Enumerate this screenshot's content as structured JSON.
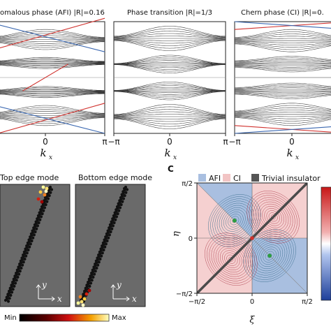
{
  "panel_c_letter": "C",
  "panel_a": {
    "xlim": [
      -3.1416,
      3.1416
    ],
    "xlabel": "k",
    "xlabel_sub": "x",
    "tick_labels": [
      "π",
      "0",
      "π"
    ],
    "colors": {
      "red": "#d0312d",
      "blue": "#3a67b0",
      "bands": "#3a3a3a"
    },
    "charts": [
      {
        "type": "line",
        "title": "omalous phase (AFI)  |R|=0.16",
        "bulk_bands": [
          {
            "center": 0.16,
            "halfwidth_min": 0.02,
            "halfwidth_max": 0.09
          },
          {
            "center": 0.37,
            "halfwidth_min": 0.015,
            "halfwidth_max": 0.05
          },
          {
            "center": 0.63,
            "halfwidth_min": 0.015,
            "halfwidth_max": 0.05
          },
          {
            "center": 0.84,
            "halfwidth_min": 0.02,
            "halfwidth_max": 0.09
          }
        ],
        "edge_states": "winding",
        "x_tick_labels": [
          "0",
          "π"
        ]
      },
      {
        "type": "line",
        "title": "Phase transition  |R|=1/3",
        "bulk_bands": [
          {
            "center": 0.15,
            "halfwidth_min": 0.02,
            "halfwidth_max": 0.11
          },
          {
            "center": 0.38,
            "halfwidth_min": 0.005,
            "halfwidth_max": 0.08
          },
          {
            "center": 0.62,
            "halfwidth_min": 0.005,
            "halfwidth_max": 0.08
          },
          {
            "center": 0.85,
            "halfwidth_min": 0.02,
            "halfwidth_max": 0.11
          }
        ],
        "edge_states": "none",
        "x_tick_labels": [
          "−π",
          "0",
          "π"
        ]
      },
      {
        "type": "line",
        "title": "Chern phase (CI)  |R|=0.",
        "bulk_bands": [
          {
            "center": 0.17,
            "halfwidth_min": 0.03,
            "halfwidth_max": 0.1
          },
          {
            "center": 0.38,
            "halfwidth_min": 0.03,
            "halfwidth_max": 0.07
          },
          {
            "center": 0.62,
            "halfwidth_min": 0.03,
            "halfwidth_max": 0.07
          },
          {
            "center": 0.83,
            "halfwidth_min": 0.03,
            "halfwidth_max": 0.1
          }
        ],
        "edge_states": "chern",
        "x_tick_labels": [
          "−π",
          "0"
        ]
      }
    ]
  },
  "panel_b": {
    "titles": [
      "Top edge mode",
      "Bottom edge mode"
    ],
    "axis_y": "y",
    "axis_x": "x",
    "colorbar_min": "Min",
    "colorbar_max": "Max",
    "lattice_color": "#111111",
    "background": "#6a6a6a"
  },
  "panel_c": {
    "type": "heatmap",
    "legend": [
      {
        "label": "AFI",
        "color": "#a9bfe0"
      },
      {
        "label": "CI",
        "color": "#f2c4c4"
      },
      {
        "label": "Trivial insulator",
        "color": "#555555"
      }
    ],
    "xlabel": "ξ",
    "ylabel": "η",
    "xlim": [
      -1.5708,
      1.5708
    ],
    "ylim": [
      -1.5708,
      1.5708
    ],
    "x_tick_labels": [
      "−π/2",
      "0",
      "π/2"
    ],
    "y_tick_labels": [
      "π/2",
      "0",
      "−π/2"
    ],
    "afi_color": "#a9bfe0",
    "ci_color": "#f5d0d0",
    "trivial_line_color": "#4a4a4a",
    "markers": [
      {
        "x": -0.5,
        "y": 0.5,
        "color": "#2e9e3e"
      },
      {
        "x": 0.5,
        "y": -0.5,
        "color": "#2e9e3e"
      },
      {
        "x": 0,
        "y": 0,
        "color": "#d0312d"
      }
    ]
  }
}
